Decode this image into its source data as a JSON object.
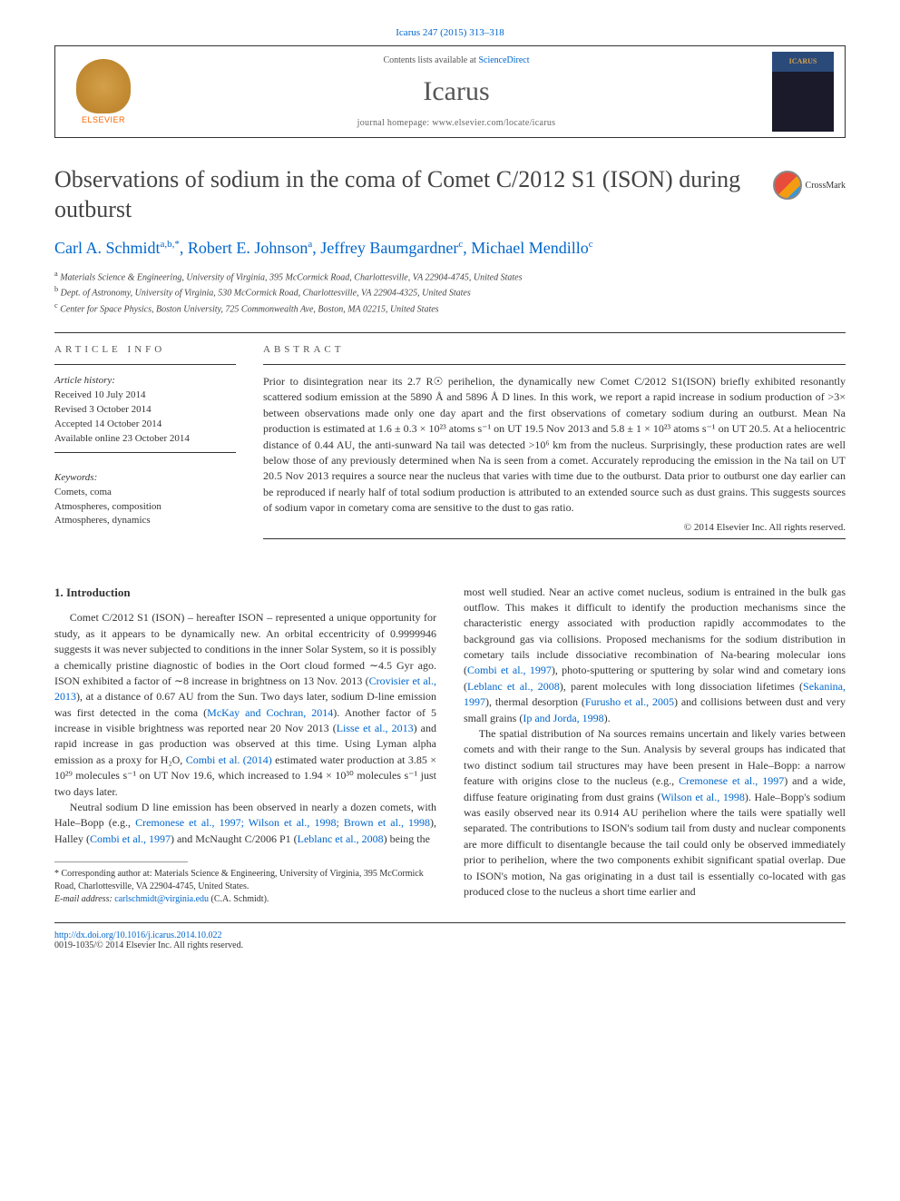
{
  "citation": "Icarus 247 (2015) 313–318",
  "header": {
    "contents_prefix": "Contents lists available at ",
    "contents_link": "ScienceDirect",
    "journal": "Icarus",
    "homepage_prefix": "journal homepage: ",
    "homepage_url": "www.elsevier.com/locate/icarus",
    "publisher": "ELSEVIER"
  },
  "title": "Observations of sodium in the coma of Comet C/2012 S1 (ISON) during outburst",
  "crossmark": "CrossMark",
  "authors_html": "Carl A. Schmidt",
  "authors": {
    "a1_name": "Carl A. Schmidt",
    "a1_sup": "a,b,*",
    "a2_name": "Robert E. Johnson",
    "a2_sup": "a",
    "a3_name": "Jeffrey Baumgardner",
    "a3_sup": "c",
    "a4_name": "Michael Mendillo",
    "a4_sup": "c"
  },
  "affiliations": {
    "a": "Materials Science & Engineering, University of Virginia, 395 McCormick Road, Charlottesville, VA 22904-4745, United States",
    "b": "Dept. of Astronomy, University of Virginia, 530 McCormick Road, Charlottesville, VA 22904-4325, United States",
    "c": "Center for Space Physics, Boston University, 725 Commonwealth Ave, Boston, MA 02215, United States"
  },
  "labels": {
    "article_info": "ARTICLE INFO",
    "abstract": "ABSTRACT",
    "history_heading": "Article history:",
    "keywords_heading": "Keywords:"
  },
  "history": {
    "received": "Received 10 July 2014",
    "revised": "Revised 3 October 2014",
    "accepted": "Accepted 14 October 2014",
    "online": "Available online 23 October 2014"
  },
  "keywords": [
    "Comets, coma",
    "Atmospheres, composition",
    "Atmospheres, dynamics"
  ],
  "abstract": "Prior to disintegration near its 2.7 R☉ perihelion, the dynamically new Comet C/2012 S1(ISON) briefly exhibited resonantly scattered sodium emission at the 5890 Å and 5896 Å D lines. In this work, we report a rapid increase in sodium production of >3× between observations made only one day apart and the first observations of cometary sodium during an outburst. Mean Na production is estimated at 1.6 ± 0.3 × 10²³ atoms s⁻¹ on UT 19.5 Nov 2013 and 5.8 ± 1 × 10²³ atoms s⁻¹ on UT 20.5. At a heliocentric distance of 0.44 AU, the anti-sunward Na tail was detected >10⁶ km from the nucleus. Surprisingly, these production rates are well below those of any previously determined when Na is seen from a comet. Accurately reproducing the emission in the Na tail on UT 20.5 Nov 2013 requires a source near the nucleus that varies with time due to the outburst. Data prior to outburst one day earlier can be reproduced if nearly half of total sodium production is attributed to an extended source such as dust grains. This suggests sources of sodium vapor in cometary coma are sensitive to the dust to gas ratio.",
  "copyright": "© 2014 Elsevier Inc. All rights reserved.",
  "intro_heading": "1. Introduction",
  "body": {
    "left_p1a": "Comet C/2012 S1 (ISON) – hereafter ISON – represented a unique opportunity for study, as it appears to be dynamically new. An orbital eccentricity of 0.9999946 suggests it was never subjected to conditions in the inner Solar System, so it is possibly a chemically pristine diagnostic of bodies in the Oort cloud formed ∼4.5 Gyr ago. ISON exhibited a factor of ∼8 increase in brightness on 13 Nov. 2013 (",
    "ref1": "Crovisier et al., 2013",
    "left_p1b": "), at a distance of 0.67 AU from the Sun. Two days later, sodium D-line emission was first detected in the coma (",
    "ref2": "McKay and Cochran, 2014",
    "left_p1c": "). Another factor of 5 increase in visible brightness was reported near 20 Nov 2013 (",
    "ref3": "Lisse et al., 2013",
    "left_p1d": ") and rapid increase in gas production was observed at this time. Using Lyman alpha emission as a proxy for H₂O, ",
    "ref4": "Combi et al. (2014)",
    "left_p1e": " estimated water production at 3.85 × 10²⁹ molecules s⁻¹ on UT Nov 19.6, which increased to 1.94 × 10³⁰ molecules s⁻¹ just two days later.",
    "left_p2a": "Neutral sodium D line emission has been observed in nearly a dozen comets, with Hale–Bopp (e.g., ",
    "ref5": "Cremonese et al., 1997; Wilson et al., 1998; Brown et al., 1998",
    "left_p2b": "), Halley (",
    "ref6": "Combi et al., 1997",
    "left_p2c": ") and McNaught C/2006 P1 (",
    "ref7": "Leblanc et al., 2008",
    "left_p2d": ") being the",
    "right_p1a": "most well studied. Near an active comet nucleus, sodium is entrained in the bulk gas outflow. This makes it difficult to identify the production mechanisms since the characteristic energy associated with production rapidly accommodates to the background gas via collisions. Proposed mechanisms for the sodium distribution in cometary tails include dissociative recombination of Na-bearing molecular ions (",
    "ref8": "Combi et al., 1997",
    "right_p1b": "), photo-sputtering or sputtering by solar wind and cometary ions (",
    "ref9": "Leblanc et al., 2008",
    "right_p1c": "), parent molecules with long dissociation lifetimes (",
    "ref10": "Sekanina, 1997",
    "right_p1d": "), thermal desorption (",
    "ref11": "Furusho et al., 2005",
    "right_p1e": ") and collisions between dust and very small grains (",
    "ref12": "Ip and Jorda, 1998",
    "right_p1f": ").",
    "right_p2a": "The spatial distribution of Na sources remains uncertain and likely varies between comets and with their range to the Sun. Analysis by several groups has indicated that two distinct sodium tail structures may have been present in Hale–Bopp: a narrow feature with origins close to the nucleus (e.g., ",
    "ref13": "Cremonese et al., 1997",
    "right_p2b": ") and a wide, diffuse feature originating from dust grains (",
    "ref14": "Wilson et al., 1998",
    "right_p2c": "). Hale–Bopp's sodium was easily observed near its 0.914 AU perihelion where the tails were spatially well separated. The contributions to ISON's sodium tail from dusty and nuclear components are more difficult to disentangle because the tail could only be observed immediately prior to perihelion, where the two components exhibit significant spatial overlap. Due to ISON's motion, Na gas originating in a dust tail is essentially co-located with gas produced close to the nucleus a short time earlier and"
  },
  "footnote": {
    "corr": "* Corresponding author at: Materials Science & Engineering, University of Virginia, 395 McCormick Road, Charlottesville, VA 22904-4745, United States.",
    "email_label": "E-mail address: ",
    "email": "carlschmidt@virginia.edu",
    "email_name": " (C.A. Schmidt)."
  },
  "footer": {
    "doi": "http://dx.doi.org/10.1016/j.icarus.2014.10.022",
    "issn_line": "0019-1035/© 2014 Elsevier Inc. All rights reserved."
  }
}
